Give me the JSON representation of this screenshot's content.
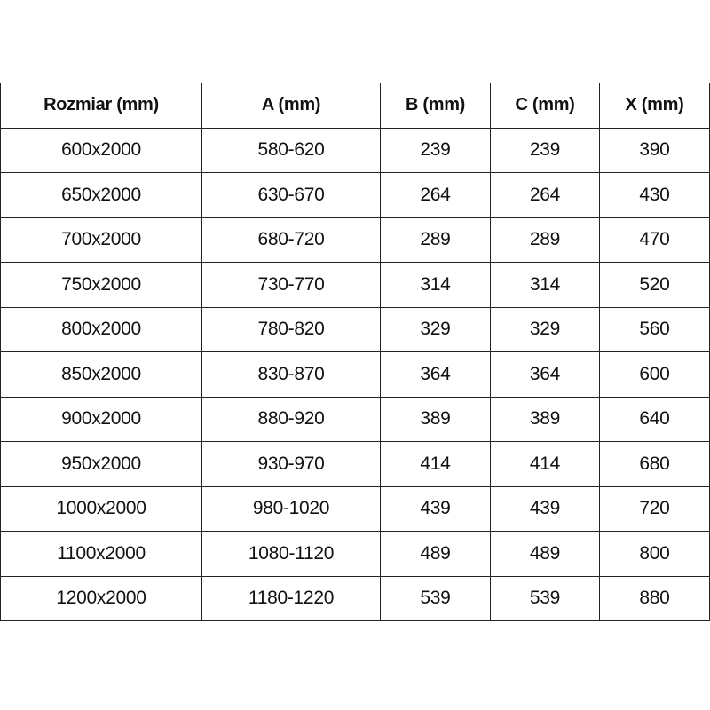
{
  "table": {
    "headers": [
      "Rozmiar (mm)",
      "A (mm)",
      "B (mm)",
      "C (mm)",
      "X (mm)"
    ],
    "rows": [
      [
        "600x2000",
        "580-620",
        "239",
        "239",
        "390"
      ],
      [
        "650x2000",
        "630-670",
        "264",
        "264",
        "430"
      ],
      [
        "700x2000",
        "680-720",
        "289",
        "289",
        "470"
      ],
      [
        "750x2000",
        "730-770",
        "314",
        "314",
        "520"
      ],
      [
        "800x2000",
        "780-820",
        "329",
        "329",
        "560"
      ],
      [
        "850x2000",
        "830-870",
        "364",
        "364",
        "600"
      ],
      [
        "900x2000",
        "880-920",
        "389",
        "389",
        "640"
      ],
      [
        "950x2000",
        "930-970",
        "414",
        "414",
        "680"
      ],
      [
        "1000x2000",
        "980-1020",
        "439",
        "439",
        "720"
      ],
      [
        "1100x2000",
        "1080-1120",
        "489",
        "489",
        "800"
      ],
      [
        "1200x2000",
        "1180-1220",
        "539",
        "539",
        "880"
      ]
    ]
  }
}
